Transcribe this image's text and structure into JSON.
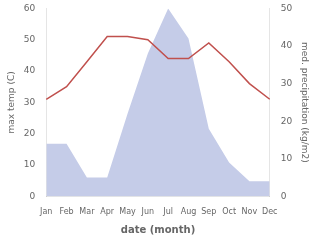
{
  "chart_data": {
    "type": "line",
    "xlabel": "date (month)",
    "ylabel": "max temp (C)",
    "y2label": "med. precipitation (kg/m2)",
    "categories": [
      "Jan",
      "Feb",
      "Mar",
      "Apr",
      "May",
      "Jun",
      "Jul",
      "Aug",
      "Sep",
      "Oct",
      "Nov",
      "Dec"
    ],
    "series": [
      {
        "type": "line",
        "color": "#c0504d",
        "values": [
          31,
          35,
          43,
          51,
          51,
          50,
          44,
          44,
          49,
          43,
          36,
          31
        ]
      },
      {
        "type": "area",
        "color": "#c5cce8",
        "axis": "y2",
        "values": [
          14,
          14,
          5,
          5,
          22,
          38,
          50,
          42,
          18,
          9,
          4,
          4
        ]
      }
    ],
    "ylim": [
      0,
      60
    ],
    "yticks": [
      0,
      10,
      20,
      30,
      40,
      50,
      60
    ],
    "y2lim": [
      0,
      50
    ],
    "y2ticks": [
      0,
      10,
      20,
      30,
      40,
      50
    ],
    "grid": false
  }
}
